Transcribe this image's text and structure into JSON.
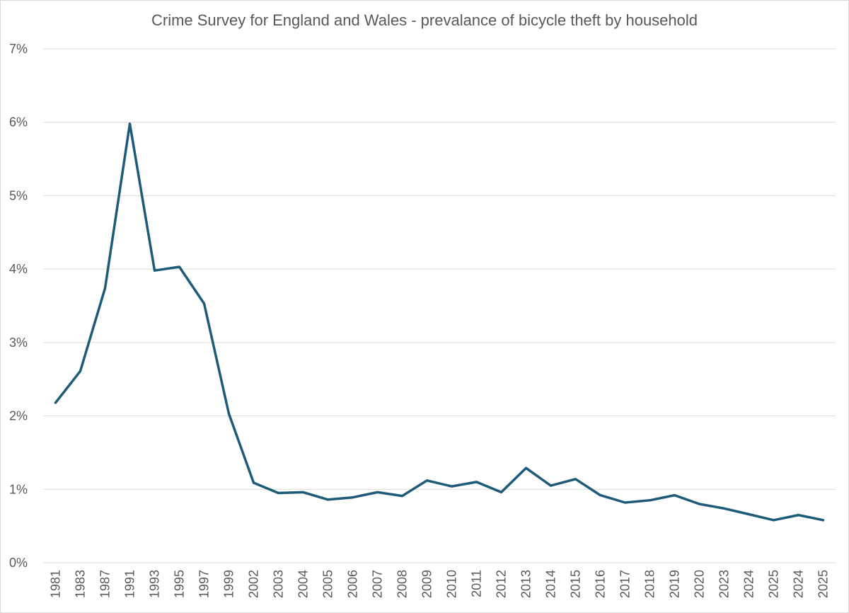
{
  "chart_data": {
    "type": "line",
    "title": "Crime Survey for England and Wales - prevalance of bicycle theft by household",
    "xlabel": "",
    "ylabel": "",
    "categories": [
      "1981",
      "1983",
      "1987",
      "1991",
      "1993",
      "1995",
      "1997",
      "1999",
      "2002",
      "2003",
      "2004",
      "2005",
      "2006",
      "2007",
      "2008",
      "2009",
      "2010",
      "2011",
      "2012",
      "2013",
      "2014",
      "2015",
      "2016",
      "2017",
      "2018",
      "2019",
      "2020",
      "2023",
      "2024",
      "2025",
      "2024",
      "2025"
    ],
    "series": [
      {
        "values": [
          2.18,
          2.61,
          3.74,
          5.98,
          3.98,
          4.03,
          3.53,
          2.03,
          1.09,
          0.95,
          0.96,
          0.86,
          0.89,
          0.96,
          0.91,
          1.12,
          1.04,
          1.1,
          0.96,
          1.29,
          1.05,
          1.14,
          0.92,
          0.82,
          0.85,
          0.92,
          0.8,
          0.74,
          0.66,
          0.58,
          0.65,
          0.58
        ]
      }
    ],
    "ylim": [
      0,
      7
    ],
    "yticks": [
      "0%",
      "1%",
      "2%",
      "3%",
      "4%",
      "5%",
      "6%",
      "7%"
    ],
    "grid": true,
    "legend": "none",
    "colors": {
      "line": "#1d5b79",
      "grid": "#d9d9d9",
      "text": "#595959"
    }
  }
}
